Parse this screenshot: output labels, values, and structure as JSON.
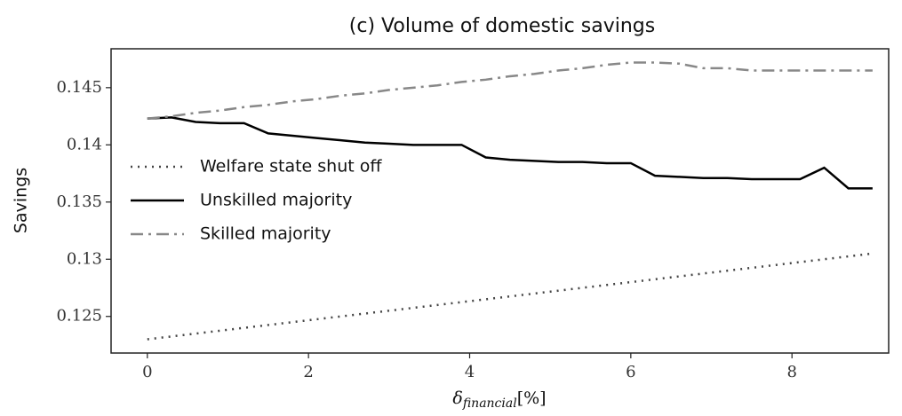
{
  "chart_data": {
    "type": "line",
    "title": "(c) Volume of domestic savings",
    "ylabel": "Savings",
    "xlabel": {
      "symbol": "δ",
      "subscript": "financial",
      "unit": "[%]"
    },
    "x": [
      0,
      0.3,
      0.6,
      0.9,
      1.2,
      1.5,
      1.8,
      2.1,
      2.4,
      2.7,
      3.0,
      3.3,
      3.6,
      3.9,
      4.2,
      4.5,
      4.8,
      5.1,
      5.4,
      5.7,
      6.0,
      6.3,
      6.6,
      6.9,
      7.2,
      7.5,
      7.8,
      8.1,
      8.4,
      8.7,
      9.0
    ],
    "series": [
      {
        "name": "Welfare state shut off",
        "color": "#444444",
        "style": "dotted",
        "values": [
          0.123,
          0.12325,
          0.1235,
          0.12375,
          0.124,
          0.12425,
          0.1245,
          0.12475,
          0.125,
          0.12525,
          0.1255,
          0.12575,
          0.126,
          0.12625,
          0.1265,
          0.12675,
          0.127,
          0.12725,
          0.1275,
          0.12775,
          0.128,
          0.12825,
          0.1285,
          0.12875,
          0.129,
          0.12925,
          0.1295,
          0.12975,
          0.13,
          0.13025,
          0.1305
        ]
      },
      {
        "name": "Unskilled majority",
        "color": "#000000",
        "style": "solid",
        "values": [
          0.1423,
          0.1424,
          0.142,
          0.1419,
          0.1419,
          0.141,
          0.1408,
          0.1406,
          0.1404,
          0.1402,
          0.1401,
          0.14,
          0.14,
          0.14,
          0.1389,
          0.1387,
          0.1386,
          0.1385,
          0.1385,
          0.1384,
          0.1384,
          0.1373,
          0.1372,
          0.1371,
          0.1371,
          0.137,
          0.137,
          0.137,
          0.138,
          0.1362,
          0.1362
        ]
      },
      {
        "name": "Skilled majority",
        "color": "#888888",
        "style": "dashdot",
        "values": [
          0.1423,
          0.1425,
          0.1428,
          0.143,
          0.1433,
          0.1435,
          0.1438,
          0.144,
          0.1443,
          0.1445,
          0.1448,
          0.145,
          0.1452,
          0.1455,
          0.1457,
          0.146,
          0.1462,
          0.1465,
          0.1467,
          0.147,
          0.1472,
          0.1472,
          0.1471,
          0.1467,
          0.1467,
          0.1465,
          0.1465,
          0.1465,
          0.1465,
          0.1465,
          0.1465
        ]
      }
    ],
    "xlim": [
      -0.45,
      9.2
    ],
    "xticks": [
      0,
      2,
      4,
      6,
      8
    ],
    "ylim": [
      0.1218,
      0.1484
    ],
    "yticks": [
      0.125,
      0.13,
      0.135,
      0.14,
      0.145
    ],
    "grid": false,
    "legend": "center left"
  }
}
